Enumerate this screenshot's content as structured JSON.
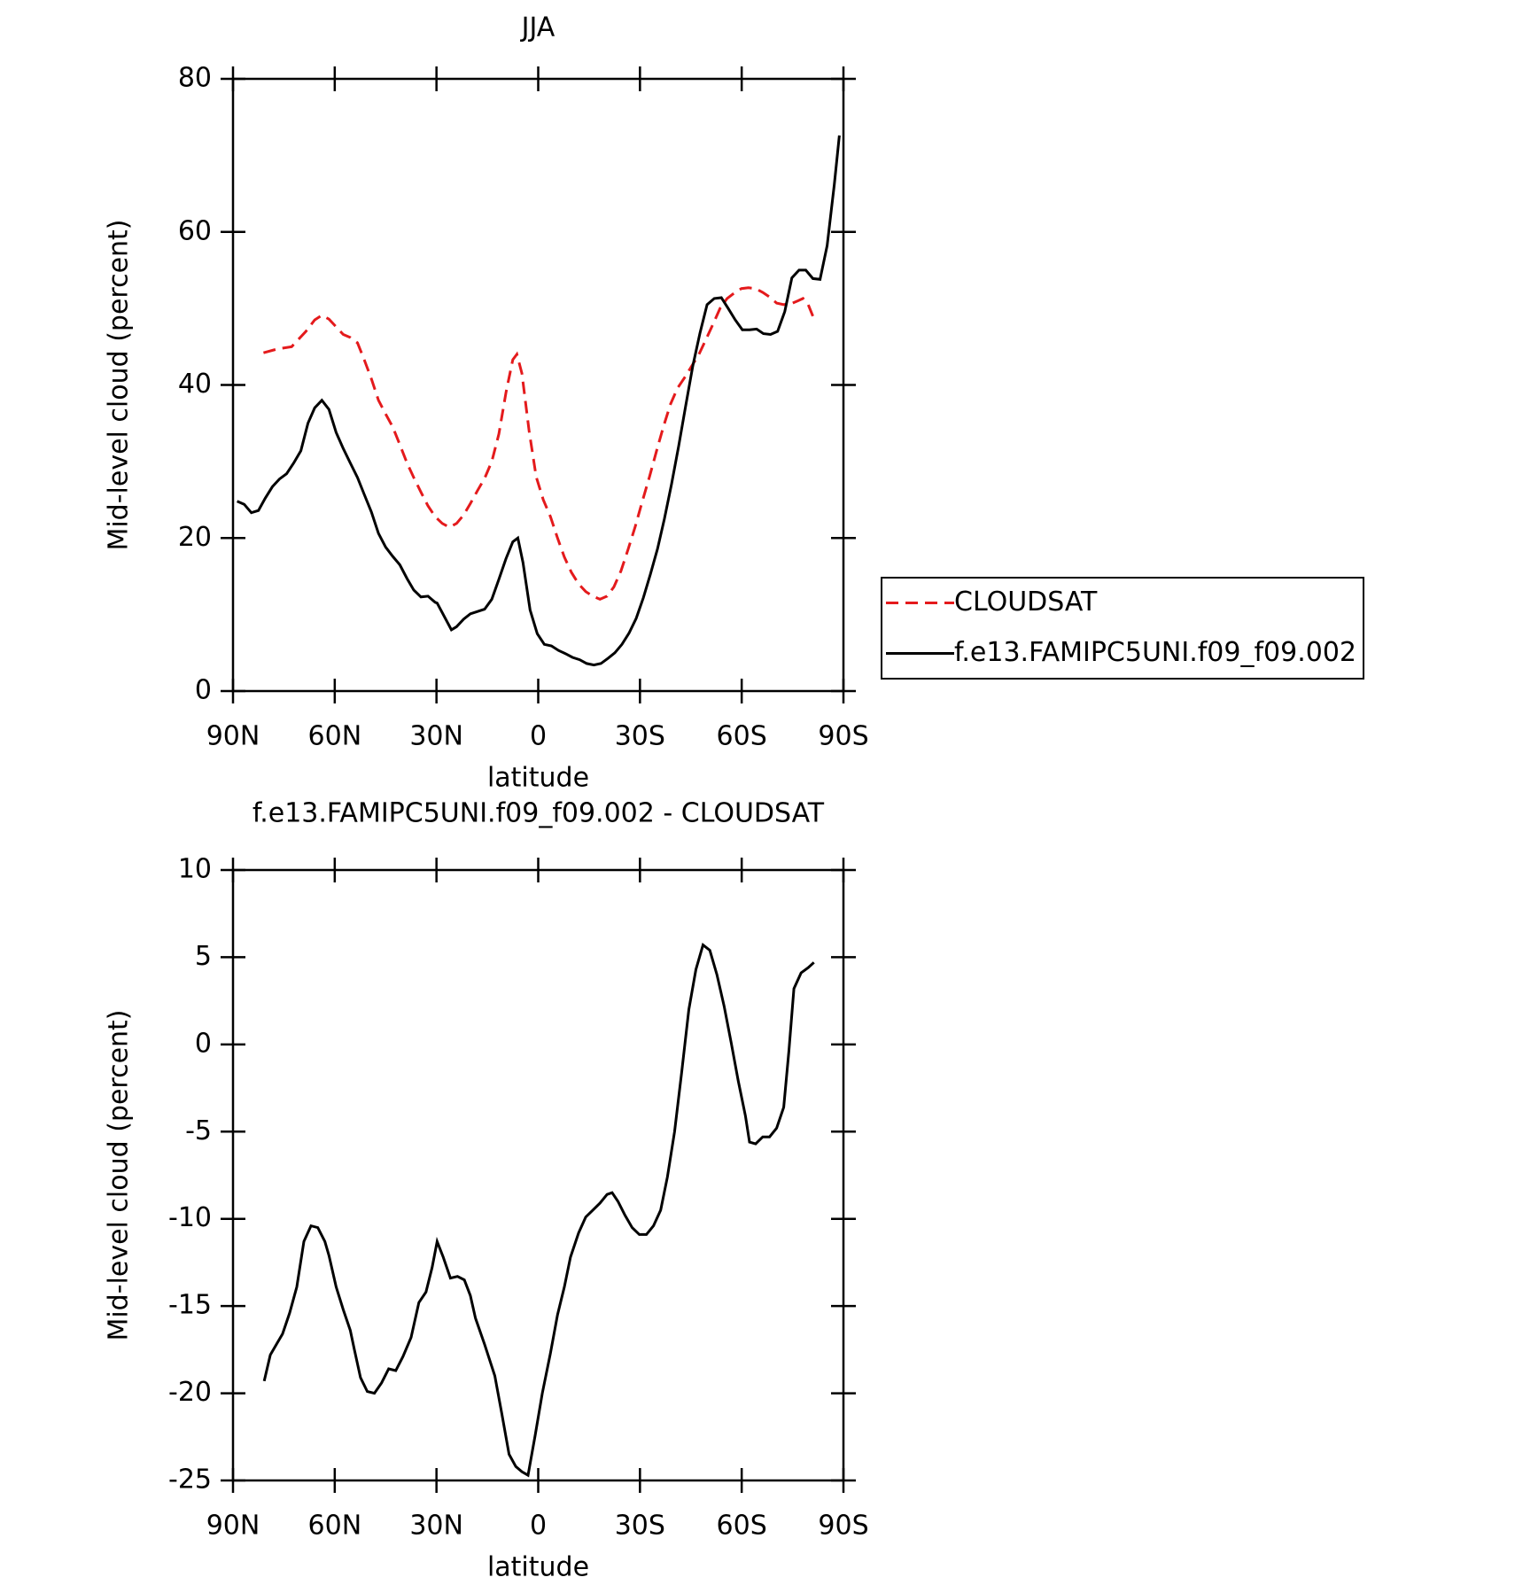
{
  "chart_data": [
    {
      "type": "line",
      "title": "JJA",
      "xlabel": "latitude",
      "ylabel": "Mid-level cloud (percent)",
      "xlim": [
        90,
        -90
      ],
      "xticks": [
        {
          "value": 90,
          "label": "90N"
        },
        {
          "value": 60,
          "label": "60N"
        },
        {
          "value": 30,
          "label": "30N"
        },
        0,
        {
          "value": -30,
          "label": "30S"
        },
        {
          "value": -60,
          "label": "60S"
        },
        {
          "value": -90,
          "label": "90S"
        }
      ],
      "ylim": [
        0,
        80
      ],
      "yticks": [
        0,
        20,
        40,
        60,
        80
      ],
      "legend": "right",
      "series": [
        {
          "name": "CLOUDSAT",
          "color": "#e41a1c",
          "style": "dashed",
          "x": [
            81.0,
            76.9,
            72.7,
            68.5,
            65.9,
            63.8,
            61.7,
            59.6,
            57.5,
            55.4,
            53.3,
            51.3,
            49.2,
            47.1,
            45.0,
            42.9,
            40.8,
            38.7,
            36.7,
            34.6,
            32.5,
            30.4,
            28.3,
            26.2,
            24.1,
            22.0,
            20.0,
            17.9,
            15.8,
            13.7,
            11.6,
            9.5,
            7.5,
            6.3,
            4.8,
            2.7,
            0.6,
            -1.5,
            -3.6,
            -5.7,
            -7.7,
            -9.8,
            -11.9,
            -14.0,
            -16.1,
            -18.2,
            -20.3,
            -22.3,
            -24.4,
            -26.5,
            -28.6,
            -30.7,
            -32.8,
            -34.9,
            -36.9,
            -39.0,
            -41.1,
            -43.2,
            -45.3,
            -47.4,
            -49.5,
            -51.6,
            -53.6,
            -55.7,
            -57.8,
            -59.9,
            -62.0,
            -64.1,
            -66.2,
            -68.2,
            -70.3,
            -72.4,
            -74.5,
            -76.6,
            -78.1,
            -79.6,
            -81.0
          ],
          "values": [
            44.2,
            44.7,
            45.0,
            47.0,
            48.5,
            49.1,
            48.6,
            47.6,
            46.6,
            46.2,
            45.5,
            43.3,
            40.8,
            38.0,
            36.2,
            34.5,
            32.2,
            29.8,
            27.9,
            26.0,
            24.2,
            22.8,
            21.9,
            21.4,
            21.9,
            23.0,
            24.5,
            26.2,
            27.8,
            30.0,
            33.6,
            39.0,
            43.3,
            44.0,
            41.5,
            34.0,
            28.0,
            25.0,
            22.8,
            20.0,
            17.5,
            15.5,
            14.0,
            13.0,
            12.4,
            12.0,
            12.4,
            13.6,
            15.7,
            18.5,
            21.5,
            24.8,
            28.0,
            31.4,
            34.5,
            37.5,
            39.6,
            41.0,
            42.5,
            44.0,
            46.0,
            48.0,
            50.0,
            51.3,
            52.0,
            52.6,
            52.7,
            52.6,
            52.1,
            51.5,
            50.7,
            50.5,
            50.6,
            51.0,
            51.3,
            50.5,
            49.0
          ]
        },
        {
          "name": "f.e13.FAMIPC5UNI.f09_f09.002",
          "color": "#000000",
          "style": "solid",
          "x": [
            88.8,
            86.7,
            84.6,
            82.5,
            80.5,
            78.4,
            76.3,
            74.2,
            72.1,
            70.0,
            67.9,
            65.9,
            63.8,
            61.7,
            59.6,
            57.5,
            55.4,
            53.3,
            51.3,
            49.2,
            47.1,
            45.0,
            42.9,
            40.8,
            38.7,
            36.7,
            34.6,
            32.5,
            30.4,
            29.8,
            25.6,
            24.1,
            22.0,
            20.0,
            17.9,
            15.8,
            13.7,
            11.6,
            9.5,
            7.5,
            6.0,
            4.5,
            2.4,
            0.3,
            -1.8,
            -3.9,
            -6.0,
            -8.0,
            -10.1,
            -12.2,
            -14.3,
            -16.4,
            -18.5,
            -20.6,
            -22.6,
            -24.7,
            -26.8,
            -28.9,
            -31.0,
            -33.1,
            -35.2,
            -37.2,
            -39.3,
            -41.4,
            -43.5,
            -45.6,
            -47.7,
            -49.8,
            -51.9,
            -54.0,
            -56.0,
            -58.1,
            -60.2,
            -62.3,
            -64.4,
            -66.4,
            -68.5,
            -70.6,
            -72.7,
            -74.8,
            -76.9,
            -78.9,
            -81.0,
            -83.1,
            -85.2,
            -87.3,
            -88.8
          ],
          "values": [
            24.8,
            24.4,
            23.3,
            23.6,
            25.2,
            26.7,
            27.7,
            28.4,
            29.8,
            31.4,
            35.0,
            37.0,
            38.0,
            36.8,
            33.8,
            31.7,
            29.8,
            27.9,
            25.7,
            23.4,
            20.6,
            18.8,
            17.6,
            16.5,
            14.7,
            13.2,
            12.3,
            12.4,
            11.6,
            11.5,
            8.0,
            8.4,
            9.4,
            10.1,
            10.4,
            10.7,
            12.0,
            14.6,
            17.3,
            19.5,
            20.0,
            16.8,
            10.6,
            7.5,
            6.1,
            5.9,
            5.3,
            4.9,
            4.4,
            4.1,
            3.6,
            3.4,
            3.6,
            4.3,
            5.0,
            6.1,
            7.6,
            9.5,
            12.2,
            15.3,
            18.6,
            22.5,
            27.0,
            32.0,
            37.3,
            42.5,
            46.8,
            50.5,
            51.3,
            51.4,
            50.0,
            48.5,
            47.2,
            47.2,
            47.3,
            46.7,
            46.6,
            47.0,
            49.6,
            54.0,
            55.0,
            55.0,
            53.9,
            53.8,
            58.2,
            66.2,
            72.6
          ]
        }
      ]
    },
    {
      "type": "line",
      "title": "f.e13.FAMIPC5UNI.f09_f09.002 - CLOUDSAT",
      "xlabel": "latitude",
      "ylabel": "Mid-level cloud (percent)",
      "xlim": [
        90,
        -90
      ],
      "xticks": [
        {
          "value": 90,
          "label": "90N"
        },
        {
          "value": 60,
          "label": "60N"
        },
        {
          "value": 30,
          "label": "30N"
        },
        0,
        {
          "value": -30,
          "label": "30S"
        },
        {
          "value": -60,
          "label": "60S"
        },
        {
          "value": -90,
          "label": "90S"
        }
      ],
      "ylim": [
        -25,
        10
      ],
      "yticks": [
        -25,
        -20,
        -15,
        -10,
        -5,
        0,
        5,
        10
      ],
      "series": [
        {
          "color": "#000000",
          "style": "solid",
          "x": [
            80.8,
            79.0,
            76.9,
            75.4,
            73.3,
            71.2,
            69.1,
            67.0,
            65.0,
            62.9,
            61.7,
            59.6,
            57.5,
            55.4,
            54.2,
            52.4,
            50.4,
            48.3,
            46.2,
            44.1,
            42.0,
            39.9,
            37.5,
            35.2,
            33.1,
            31.3,
            29.8,
            28.0,
            25.9,
            23.8,
            21.8,
            20.0,
            18.5,
            15.8,
            12.8,
            10.7,
            8.6,
            6.6,
            4.8,
            3.0,
            0.9,
            -1.2,
            -3.6,
            -5.7,
            -7.7,
            -9.5,
            -11.9,
            -14.0,
            -16.1,
            -18.2,
            -20.3,
            -21.8,
            -23.5,
            -25.6,
            -27.7,
            -29.8,
            -31.9,
            -34.0,
            -36.1,
            -38.1,
            -40.2,
            -42.3,
            -44.4,
            -46.5,
            -48.6,
            -50.6,
            -52.7,
            -54.8,
            -56.9,
            -59.0,
            -61.1,
            -62.3,
            -64.1,
            -66.2,
            -68.2,
            -70.3,
            -72.4,
            -73.9,
            -75.4,
            -77.5,
            -79.6,
            -81.3
          ],
          "values": [
            -19.3,
            -17.8,
            -17.1,
            -16.6,
            -15.4,
            -13.9,
            -11.3,
            -10.4,
            -10.5,
            -11.3,
            -12.1,
            -13.9,
            -15.2,
            -16.4,
            -17.5,
            -19.1,
            -19.9,
            -20.0,
            -19.4,
            -18.6,
            -18.7,
            -17.9,
            -16.8,
            -14.8,
            -14.2,
            -12.8,
            -11.3,
            -12.2,
            -13.4,
            -13.3,
            -13.5,
            -14.4,
            -15.7,
            -17.2,
            -19.0,
            -21.2,
            -23.5,
            -24.2,
            -24.5,
            -24.7,
            -22.4,
            -20.0,
            -17.7,
            -15.5,
            -13.9,
            -12.2,
            -10.8,
            -9.9,
            -9.5,
            -9.1,
            -8.6,
            -8.5,
            -9.0,
            -9.8,
            -10.5,
            -10.9,
            -10.9,
            -10.4,
            -9.5,
            -7.6,
            -5.0,
            -1.6,
            2.0,
            4.3,
            5.7,
            5.4,
            4.0,
            2.2,
            0.1,
            -2.1,
            -4.1,
            -5.6,
            -5.7,
            -5.3,
            -5.3,
            -4.8,
            -3.6,
            -0.4,
            3.2,
            4.1,
            4.4,
            4.7
          ]
        }
      ]
    }
  ]
}
